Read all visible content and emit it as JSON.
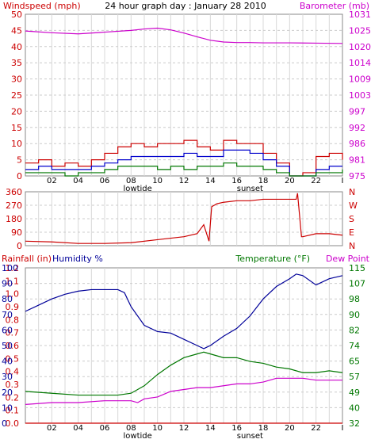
{
  "colors": {
    "windspeed": "#cc0000",
    "windavg": "#0000cc",
    "windlow": "#007700",
    "barometer": "#cc00cc",
    "direction": "#cc0000",
    "rainfall": "#cc0000",
    "humidity": "#000099",
    "temperature": "#007700",
    "dewpoint": "#cc00cc",
    "grid_vertical": "#d8d8d8",
    "grid_horizontal": "#cccccc"
  },
  "chart_data": [
    {
      "type": "line",
      "title": "24 hour graph day : January 28 2010",
      "left_axis_label": "Windspeed (mph)",
      "right_axis_label": "Barometer (mb)",
      "left_ticks": [
        "0",
        "5",
        "10",
        "15",
        "20",
        "25",
        "30",
        "35",
        "40",
        "45",
        "50"
      ],
      "right_ticks": [
        "975",
        "981",
        "986",
        "992",
        "997",
        "1003",
        "1009",
        "1014",
        "1020",
        "1025",
        "1031"
      ],
      "ylim_left": [
        0,
        50
      ],
      "ylim_right": [
        975,
        1031
      ],
      "x_ticks": [
        "02",
        "04",
        "06",
        "08",
        "10",
        "12",
        "14",
        "16",
        "18",
        "20",
        "22",
        "I"
      ],
      "x_event_labels": [
        {
          "label": "lowtide",
          "x": 8.5
        },
        {
          "label": "sunset",
          "x": 17
        }
      ],
      "x_range": [
        0,
        24
      ],
      "grid": true,
      "series": [
        {
          "key": "barometer",
          "axis": "right",
          "x": [
            0,
            2,
            4,
            6,
            8,
            9,
            10,
            11,
            12,
            13,
            14,
            15,
            16,
            17,
            18,
            20,
            22,
            24
          ],
          "values": [
            1025.2,
            1024.6,
            1024.2,
            1024.8,
            1025.4,
            1025.9,
            1026.2,
            1025.6,
            1024.5,
            1023.2,
            1022.0,
            1021.4,
            1021.2,
            1021.2,
            1021.1,
            1021.1,
            1021.0,
            1020.9
          ]
        },
        {
          "key": "windspeed",
          "axis": "left",
          "x": [
            0,
            1,
            2,
            3,
            4,
            5,
            6,
            7,
            8,
            9,
            10,
            11,
            12,
            13,
            14,
            15,
            16,
            17,
            18,
            19,
            20,
            21,
            22,
            23,
            24
          ],
          "values": [
            4,
            5,
            3,
            4,
            3,
            5,
            7,
            9,
            10,
            9,
            10,
            10,
            11,
            9,
            8,
            11,
            10,
            10,
            7,
            4,
            0,
            1,
            6,
            7,
            5
          ]
        },
        {
          "key": "windavg",
          "axis": "left",
          "x": [
            0,
            1,
            2,
            3,
            4,
            5,
            6,
            7,
            8,
            9,
            10,
            11,
            12,
            13,
            14,
            15,
            16,
            17,
            18,
            19,
            20,
            21,
            22,
            23,
            24
          ],
          "values": [
            2,
            3,
            2,
            2,
            2,
            3,
            4,
            5,
            6,
            6,
            6,
            6,
            7,
            6,
            6,
            8,
            8,
            7,
            5,
            3,
            0,
            0,
            2,
            3,
            3
          ]
        },
        {
          "key": "windlow",
          "axis": "left",
          "x": [
            0,
            1,
            2,
            3,
            4,
            5,
            6,
            7,
            8,
            9,
            10,
            11,
            12,
            13,
            14,
            15,
            16,
            17,
            18,
            19,
            20,
            21,
            22,
            23,
            24
          ],
          "values": [
            1,
            1,
            1,
            0,
            1,
            1,
            2,
            3,
            3,
            3,
            2,
            3,
            2,
            3,
            3,
            4,
            3,
            3,
            2,
            1,
            0,
            0,
            1,
            1,
            2
          ]
        }
      ]
    },
    {
      "type": "scatter",
      "left_ticks": [
        "0",
        "90",
        "180",
        "270",
        "360"
      ],
      "ylim": [
        0,
        360
      ],
      "right_labels": [
        "N",
        "W",
        "S",
        "E",
        "N"
      ],
      "x_range": [
        0,
        24
      ],
      "series": [
        {
          "key": "direction",
          "x": [
            0,
            2,
            4,
            6,
            8,
            10,
            11,
            12,
            13,
            13.5,
            13.9,
            14.1,
            14.5,
            15,
            16,
            17,
            18,
            19,
            20,
            20.5,
            20.6,
            20.9,
            21,
            22,
            23,
            24
          ],
          "values": [
            30,
            25,
            15,
            15,
            20,
            40,
            50,
            60,
            80,
            140,
            30,
            260,
            280,
            290,
            300,
            300,
            310,
            310,
            310,
            310,
            350,
            60,
            60,
            80,
            80,
            70
          ]
        }
      ]
    },
    {
      "type": "line",
      "left_axis_label": "Rainfall (in)",
      "left_axis_label_2": "Humidity %",
      "right_axis_label": "Temperature (°F)",
      "right_axis_label_2": "Dew Point",
      "rain_ticks": [
        "0.0",
        "0.1",
        "0.2",
        "0.3",
        "0.4",
        "0.5",
        "0.6",
        "0.7",
        "0.8",
        "0.9",
        "1.0",
        "1.1",
        "1.2"
      ],
      "humidity_ticks": [
        "0",
        "10",
        "20",
        "30",
        "40",
        "50",
        "60",
        "70",
        "80",
        "90",
        "100"
      ],
      "temp_ticks": [
        "32",
        "40",
        "49",
        "57",
        "65",
        "74",
        "82",
        "90",
        "98",
        "107",
        "115"
      ],
      "ylim_humidity": [
        0,
        100
      ],
      "ylim_temp": [
        32,
        115
      ],
      "x_ticks": [
        "02",
        "04",
        "06",
        "08",
        "10",
        "12",
        "14",
        "16",
        "18",
        "20",
        "22",
        "I"
      ],
      "x_event_labels": [
        {
          "label": "lowtide",
          "x": 8.5
        },
        {
          "label": "sunset",
          "x": 17
        }
      ],
      "x_range": [
        0,
        24
      ],
      "grid": true,
      "series": [
        {
          "key": "humidity",
          "axis": "left",
          "x": [
            0,
            1,
            2,
            3,
            4,
            5,
            6,
            7,
            7.5,
            8,
            9,
            10,
            11,
            12,
            13,
            13.5,
            14,
            15,
            16,
            17,
            18,
            19,
            20,
            20.5,
            21,
            22,
            23,
            24
          ],
          "values": [
            72,
            76,
            80,
            83,
            85,
            86,
            86,
            86,
            84,
            75,
            63,
            59,
            58,
            54,
            50,
            48,
            50,
            56,
            61,
            69,
            80,
            88,
            93,
            96,
            95,
            89,
            93,
            95
          ]
        },
        {
          "key": "temperature",
          "axis": "right",
          "x": [
            0,
            2,
            4,
            6,
            7,
            8,
            9,
            10,
            11,
            12,
            13,
            13.5,
            14,
            15,
            16,
            17,
            18,
            19,
            20,
            21,
            22,
            23,
            24
          ],
          "values": [
            49,
            48,
            47,
            47,
            47,
            48,
            52,
            58,
            63,
            67,
            69,
            70,
            69,
            67,
            67,
            65,
            64,
            62,
            61,
            59,
            59,
            60,
            59
          ]
        },
        {
          "key": "dewpoint",
          "axis": "right",
          "x": [
            0,
            2,
            4,
            6,
            7,
            8,
            8.5,
            9,
            10,
            11,
            12,
            13,
            14,
            15,
            16,
            17,
            18,
            19,
            20,
            21,
            22,
            23,
            24
          ],
          "values": [
            42,
            43,
            43,
            44,
            44,
            44,
            43,
            45,
            46,
            49,
            50,
            51,
            51,
            52,
            53,
            53,
            54,
            56,
            56,
            56,
            55,
            55,
            55
          ]
        },
        {
          "key": "rainfall",
          "axis": "rain",
          "x": [
            0,
            24
          ],
          "values": [
            0,
            0
          ]
        }
      ]
    }
  ]
}
